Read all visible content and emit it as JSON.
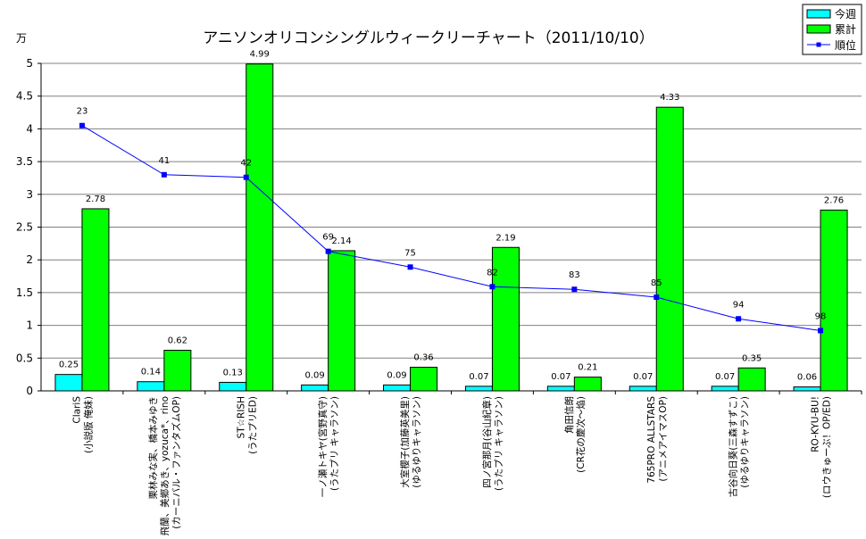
{
  "chart_data": {
    "type": "bar",
    "title": "アニソンオリコンシングルウィークリーチャート（2011/10/10）",
    "ylabel": "万",
    "ylim": [
      0,
      5
    ],
    "yticks": [
      "0",
      "0.5",
      "1",
      "1.5",
      "2",
      "2.5",
      "3",
      "3.5",
      "4",
      "4.5",
      "5"
    ],
    "grid": true,
    "legend_position": "top-right",
    "categories": [
      [
        "ClariS",
        "(小説版 俺妹)"
      ],
      [
        "栗林みな実、橋本みゆき",
        "飛蘭、美郷あき、yozuca*、rino",
        "(カーニバル・ファンタズムOP)"
      ],
      [
        "ST☆RISH",
        "(うたプリED)"
      ],
      [
        "一ノ瀬トキヤ(宮野真守)",
        "(うたプリ キャラソン)"
      ],
      [
        "大室櫻子(加藤英美里)",
        "(ゆるゆりキャラソン)"
      ],
      [
        "四ノ宮那月(谷山紀章)",
        "(うたプリ キャラソン)"
      ],
      [
        "角田信朗",
        "(CR花の慶次～焔)"
      ],
      [
        "765PRO ALLSTARS",
        "(アニメアイマスOP)"
      ],
      [
        "古谷向日葵(三森すずこ)",
        "(ゆるゆりキャラソン)"
      ],
      [
        "RO-KYU-BU!",
        "(ロウきゅーぶ！OP/ED)"
      ]
    ],
    "series": [
      {
        "name": "今週",
        "type": "bar",
        "color": "#00ffff",
        "values": [
          0.25,
          0.14,
          0.13,
          0.09,
          0.09,
          0.07,
          0.07,
          0.07,
          0.07,
          0.06
        ],
        "labels": [
          "0.25",
          "0.14",
          "0.13",
          "0.09",
          "0.09",
          "0.07",
          "0.07",
          "0.07",
          "0.07",
          "0.06"
        ]
      },
      {
        "name": "累計",
        "type": "bar",
        "color": "#00ff00",
        "values": [
          2.78,
          0.62,
          4.99,
          2.14,
          0.36,
          2.19,
          0.21,
          4.33,
          0.35,
          2.76
        ],
        "labels": [
          "2.78",
          "0.62",
          "4.99",
          "2.14",
          "0.36",
          "2.19",
          "0.21",
          "4.33",
          "0.35",
          "2.76"
        ]
      },
      {
        "name": "順位",
        "type": "line",
        "color": "#0000ff",
        "ranks": [
          23,
          41,
          42,
          69,
          75,
          82,
          83,
          85,
          94,
          98
        ],
        "y_positions": [
          4.05,
          3.3,
          3.26,
          2.13,
          1.89,
          1.59,
          1.55,
          1.43,
          1.1,
          0.92
        ]
      }
    ]
  }
}
